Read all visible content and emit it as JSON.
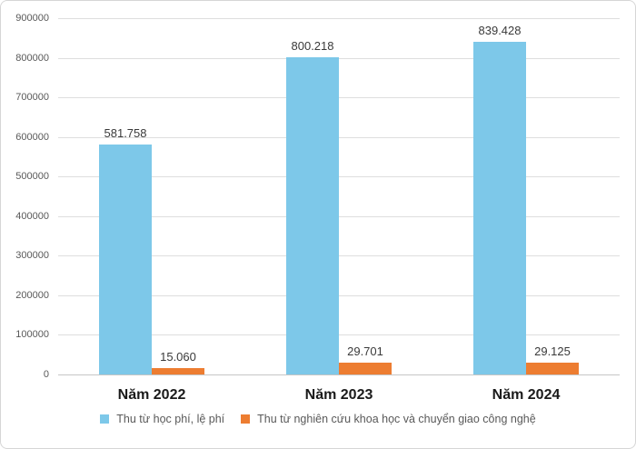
{
  "chart_data": {
    "type": "bar",
    "title": "",
    "xlabel": "",
    "ylabel": "",
    "categories": [
      "Năm 2022",
      "Năm 2023",
      "Năm 2024"
    ],
    "series": [
      {
        "name": "Thu từ học phí, lệ phí",
        "color": "#7DC8E9",
        "values": [
          581758,
          800218,
          839428
        ],
        "data_labels": [
          "581.758",
          "800.218",
          "839.428"
        ]
      },
      {
        "name": "Thu từ nghiên cứu khoa học và chuyển giao công nghệ",
        "color": "#ED7D31",
        "values": [
          15060,
          29701,
          29125
        ],
        "data_labels": [
          "15.060",
          "29.701",
          "29.125"
        ]
      }
    ],
    "ylim": [
      0,
      900000
    ],
    "ytick_step": 100000,
    "ytick_labels": [
      "0",
      "100000",
      "200000",
      "300000",
      "400000",
      "500000",
      "600000",
      "700000",
      "800000",
      "900000"
    ],
    "grid": true,
    "legend_position": "bottom"
  },
  "style": {
    "grid_color": "#dedede",
    "axis_line_color": "#c6c6c6",
    "tick_label_color": "#595959",
    "data_label_color": "#3a3a3a",
    "category_label_color": "#1a1a1a",
    "legend_text_color": "#595959",
    "background": "#ffffff",
    "border_color": "#d6d6d6"
  }
}
